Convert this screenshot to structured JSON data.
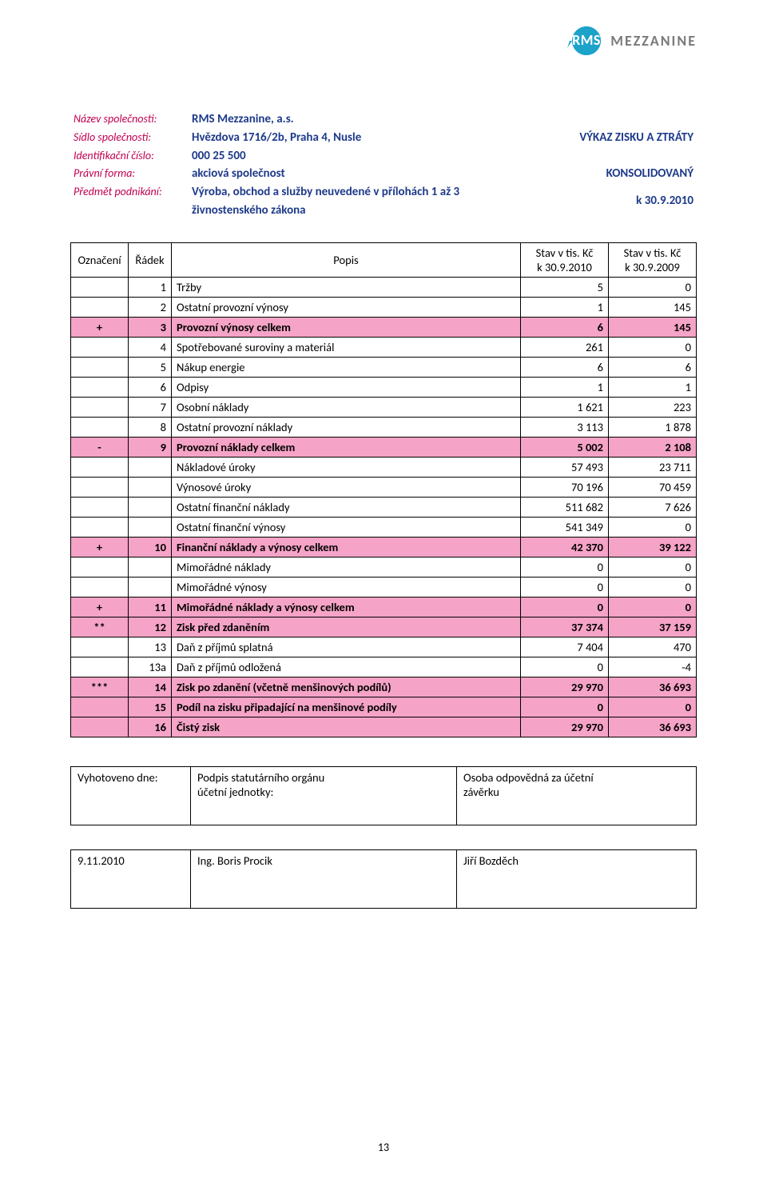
{
  "logo": {
    "badge_text": "RMS",
    "right_text": "MEZZANINE",
    "badge_color": "#1da3c9",
    "right_color": "#7a7a7a"
  },
  "header": {
    "labels": {
      "company": "Název společnosti:",
      "hq": "Sídlo společnosti:",
      "id": "Identifikační číslo:",
      "form": "Právní forma:",
      "activity": "Předmět podnikání:"
    },
    "values": {
      "company": "RMS Mezzanine, a.s.",
      "hq": "Hvězdova 1716/2b, Praha 4, Nusle",
      "id": "000 25 500",
      "form": "akciová společnost",
      "activity_l1": "Výroba, obchod a služby neuvedené v přílohách 1 až 3",
      "activity_l2": "živnostenského zákona"
    },
    "right": {
      "title": "VÝKAZ ZISKU A ZTRÁTY",
      "scope": "KONSOLIDOVANÝ",
      "date": "k 30.9.2010"
    },
    "label_color": "#c0004f",
    "value_color": "#1e3a8a"
  },
  "table": {
    "pink_bg": "#f5a3c7",
    "columns": {
      "oz": "Označení",
      "rad": "Řádek",
      "pop": "Popis",
      "c1_l1": "Stav v tis. Kč",
      "c1_l2": "k 30.9.2010",
      "c2_l1": "Stav v tis. Kč",
      "c2_l2": "k 30.9.2009"
    },
    "rows": [
      {
        "oz": "",
        "rad": "1",
        "pop": "Tržby",
        "v1": "5",
        "v2": "0",
        "pink": false
      },
      {
        "oz": "",
        "rad": "2",
        "pop": "Ostatní provozní výnosy",
        "v1": "1",
        "v2": "145",
        "pink": false
      },
      {
        "oz": "+",
        "rad": "3",
        "pop": "Provozní výnosy celkem",
        "v1": "6",
        "v2": "145",
        "pink": true
      },
      {
        "oz": "",
        "rad": "4",
        "pop": "Spotřebované suroviny a materiál",
        "v1": "261",
        "v2": "0",
        "pink": false
      },
      {
        "oz": "",
        "rad": "5",
        "pop": "Nákup energie",
        "v1": "6",
        "v2": "6",
        "pink": false
      },
      {
        "oz": "",
        "rad": "6",
        "pop": "Odpisy",
        "v1": "1",
        "v2": "1",
        "pink": false
      },
      {
        "oz": "",
        "rad": "7",
        "pop": "Osobní náklady",
        "v1": "1 621",
        "v2": "223",
        "pink": false
      },
      {
        "oz": "",
        "rad": "8",
        "pop": "Ostatní provozní náklady",
        "v1": "3 113",
        "v2": "1 878",
        "pink": false
      },
      {
        "oz": "-",
        "rad": "9",
        "pop": "Provozní náklady celkem",
        "v1": "5 002",
        "v2": "2 108",
        "pink": true
      },
      {
        "oz": "",
        "rad": "",
        "pop": "Nákladové úroky",
        "v1": "57 493",
        "v2": "23 711",
        "pink": false
      },
      {
        "oz": "",
        "rad": "",
        "pop": "Výnosové úroky",
        "v1": "70 196",
        "v2": "70 459",
        "pink": false
      },
      {
        "oz": "",
        "rad": "",
        "pop": "Ostatní finanční náklady",
        "v1": "511 682",
        "v2": "7 626",
        "pink": false
      },
      {
        "oz": "",
        "rad": "",
        "pop": "Ostatní finanční výnosy",
        "v1": "541 349",
        "v2": "0",
        "pink": false
      },
      {
        "oz": "+",
        "rad": "10",
        "pop": "Finanční náklady a výnosy celkem",
        "v1": "42 370",
        "v2": "39 122",
        "pink": true
      },
      {
        "oz": "",
        "rad": "",
        "pop": "Mimořádné náklady",
        "v1": "0",
        "v2": "0",
        "pink": false
      },
      {
        "oz": "",
        "rad": "",
        "pop": "Mimořádné výnosy",
        "v1": "0",
        "v2": "0",
        "pink": false
      },
      {
        "oz": "+",
        "rad": "11",
        "pop": "Mimořádné náklady a výnosy celkem",
        "v1": "0",
        "v2": "0",
        "pink": true
      },
      {
        "oz": "**",
        "rad": "12",
        "pop": "Zisk před zdaněním",
        "v1": "37 374",
        "v2": "37 159",
        "pink": true
      },
      {
        "oz": "",
        "rad": "13",
        "pop": "Daň z příjmů splatná",
        "v1": "7 404",
        "v2": "470",
        "pink": false
      },
      {
        "oz": "",
        "rad": "13a",
        "pop": "Daň z příjmů odložená",
        "v1": "0",
        "v2": "-4",
        "pink": false
      },
      {
        "oz": "***",
        "rad": "14",
        "pop": "Zisk po zdanění (včetně menšinových podílů)",
        "v1": "29 970",
        "v2": "36 693",
        "pink": true
      },
      {
        "oz": "",
        "rad": "15",
        "pop": "Podíl na zisku připadající na menšinové podíly",
        "v1": "0",
        "v2": "0",
        "pink": true
      },
      {
        "oz": "",
        "rad": "16",
        "pop": "Čistý zisk",
        "v1": "29 970",
        "v2": "36 693",
        "pink": true
      }
    ]
  },
  "signature": {
    "r1": {
      "left": "Vyhotoveno dne:",
      "mid_l1": "Podpis statutárního orgánu",
      "mid_l2": "účetní jednotky:",
      "right_l1": "Osoba odpovědná za účetní",
      "right_l2": "závěrku"
    },
    "r2": {
      "left": "9.11.2010",
      "mid": "Ing. Boris Procik",
      "right": "Jiří Bozděch"
    }
  },
  "page_number": "13"
}
